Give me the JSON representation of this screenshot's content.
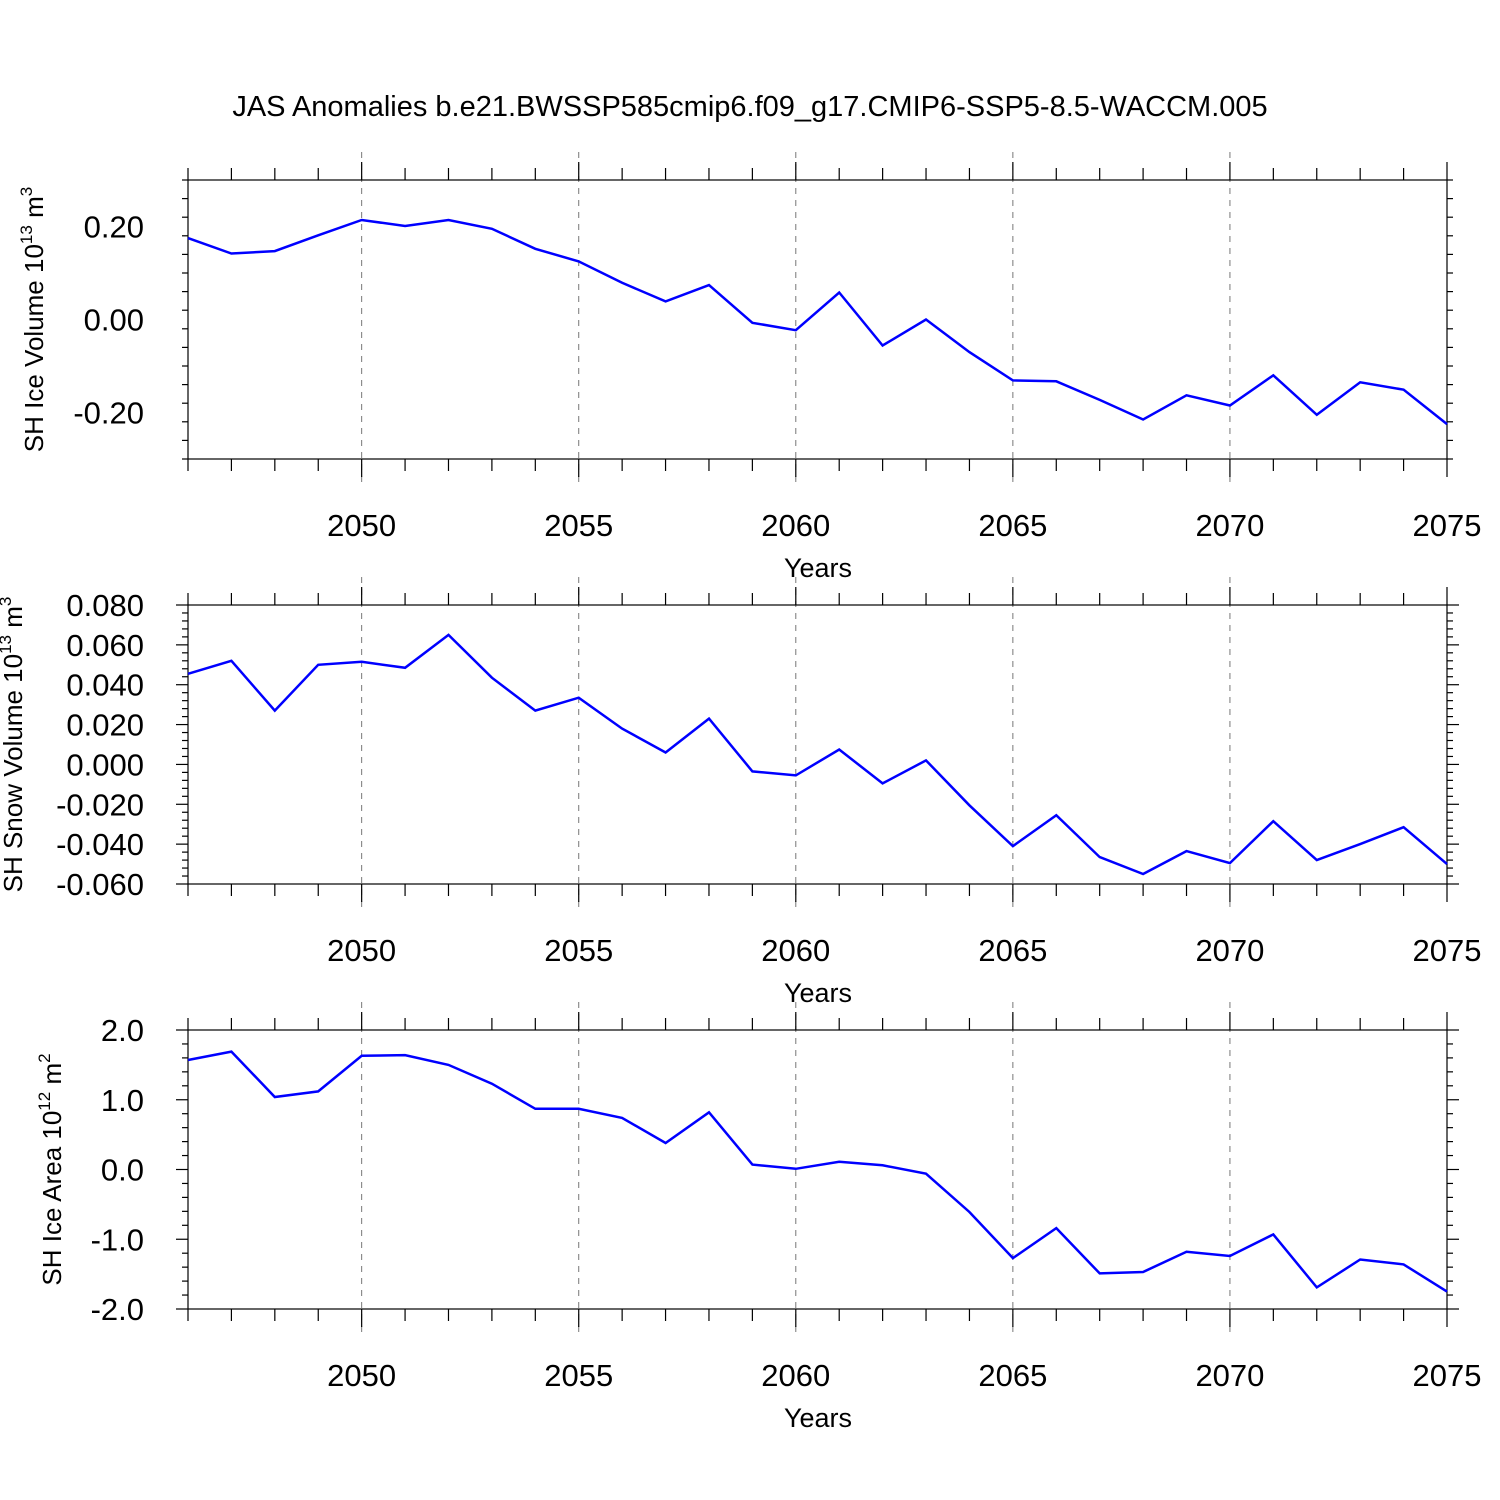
{
  "title": "JAS Anomalies b.e21.BWSSP585cmip6.f09_g17.CMIP6-SSP5-8.5-WACCM.005",
  "colors": {
    "series": "#0000ff",
    "grid": "#777777",
    "axes": "#000000"
  },
  "chart_data": [
    {
      "type": "line",
      "xlabel": "Years",
      "ylabel": "SH Ice Volume 10",
      "ylabel_sup": "13",
      "ylabel_unit": "m",
      "ylabel_unit_sup": "3",
      "xlim": [
        2046,
        2075
      ],
      "ylim": [
        -0.3,
        0.3
      ],
      "xticks": [
        2050,
        2055,
        2060,
        2065,
        2070,
        2075
      ],
      "yticks": [
        -0.2,
        0.0,
        0.2
      ],
      "ytick_labels": [
        "-0.20",
        "0.00",
        "0.20"
      ],
      "grid": "dashed vertical at major x ticks",
      "series": [
        {
          "x": [
            2046,
            2047,
            2048,
            2049,
            2050,
            2051,
            2052,
            2053,
            2054,
            2055,
            2056,
            2057,
            2058,
            2059,
            2060,
            2061,
            2062,
            2063,
            2064,
            2065,
            2066,
            2067,
            2068,
            2069,
            2070,
            2071,
            2072,
            2073,
            2074,
            2075
          ],
          "values": [
            0.175,
            0.142,
            0.147,
            0.181,
            0.214,
            0.201,
            0.214,
            0.195,
            0.152,
            0.125,
            0.079,
            0.039,
            0.074,
            -0.007,
            -0.023,
            0.058,
            -0.056,
            0.0,
            -0.07,
            -0.131,
            -0.133,
            -0.173,
            -0.215,
            -0.163,
            -0.185,
            -0.12,
            -0.205,
            -0.135,
            -0.151,
            -0.225
          ]
        }
      ]
    },
    {
      "type": "line",
      "xlabel": "Years",
      "ylabel": "SH Snow Volume 10",
      "ylabel_sup": "13",
      "ylabel_unit": "m",
      "ylabel_unit_sup": "3",
      "xlim": [
        2046,
        2075
      ],
      "ylim": [
        -0.06,
        0.08
      ],
      "xticks": [
        2050,
        2055,
        2060,
        2065,
        2070,
        2075
      ],
      "yticks": [
        -0.06,
        -0.04,
        -0.02,
        0.0,
        0.02,
        0.04,
        0.06,
        0.08
      ],
      "ytick_labels": [
        "-0.060",
        "-0.040",
        "-0.020",
        "0.000",
        "0.020",
        "0.040",
        "0.060",
        "0.080"
      ],
      "grid": "dashed vertical at major x ticks",
      "series": [
        {
          "x": [
            2046,
            2047,
            2048,
            2049,
            2050,
            2051,
            2052,
            2053,
            2054,
            2055,
            2056,
            2057,
            2058,
            2059,
            2060,
            2061,
            2062,
            2063,
            2064,
            2065,
            2066,
            2067,
            2068,
            2069,
            2070,
            2071,
            2072,
            2073,
            2074,
            2075
          ],
          "values": [
            0.0455,
            0.052,
            0.027,
            0.05,
            0.0515,
            0.0485,
            0.065,
            0.0435,
            0.027,
            0.0335,
            0.018,
            0.006,
            0.023,
            -0.0035,
            -0.0055,
            0.0075,
            -0.0095,
            0.002,
            -0.0205,
            -0.041,
            -0.0255,
            -0.0465,
            -0.055,
            -0.0435,
            -0.0495,
            -0.0285,
            -0.048,
            -0.04,
            -0.0315,
            -0.05
          ]
        }
      ]
    },
    {
      "type": "line",
      "xlabel": "Years",
      "ylabel": "SH Ice Area 10",
      "ylabel_sup": "12",
      "ylabel_unit": "m",
      "ylabel_unit_sup": "2",
      "xlim": [
        2046,
        2075
      ],
      "ylim": [
        -2.0,
        2.0
      ],
      "xticks": [
        2050,
        2055,
        2060,
        2065,
        2070,
        2075
      ],
      "yticks": [
        -2.0,
        -1.0,
        0.0,
        1.0,
        2.0
      ],
      "ytick_labels": [
        "-2.0",
        "-1.0",
        "0.0",
        "1.0",
        "2.0"
      ],
      "grid": "dashed vertical at major x ticks",
      "series": [
        {
          "x": [
            2046,
            2047,
            2048,
            2049,
            2050,
            2051,
            2052,
            2053,
            2054,
            2055,
            2056,
            2057,
            2058,
            2059,
            2060,
            2061,
            2062,
            2063,
            2064,
            2065,
            2066,
            2067,
            2068,
            2069,
            2070,
            2071,
            2072,
            2073,
            2074,
            2075
          ],
          "values": [
            1.57,
            1.69,
            1.04,
            1.12,
            1.63,
            1.64,
            1.5,
            1.23,
            0.87,
            0.87,
            0.74,
            0.38,
            0.82,
            0.07,
            0.01,
            0.11,
            0.06,
            -0.06,
            -0.61,
            -1.27,
            -0.84,
            -1.49,
            -1.47,
            -1.18,
            -1.24,
            -0.93,
            -1.69,
            -1.29,
            -1.36,
            -1.75
          ]
        }
      ]
    }
  ]
}
